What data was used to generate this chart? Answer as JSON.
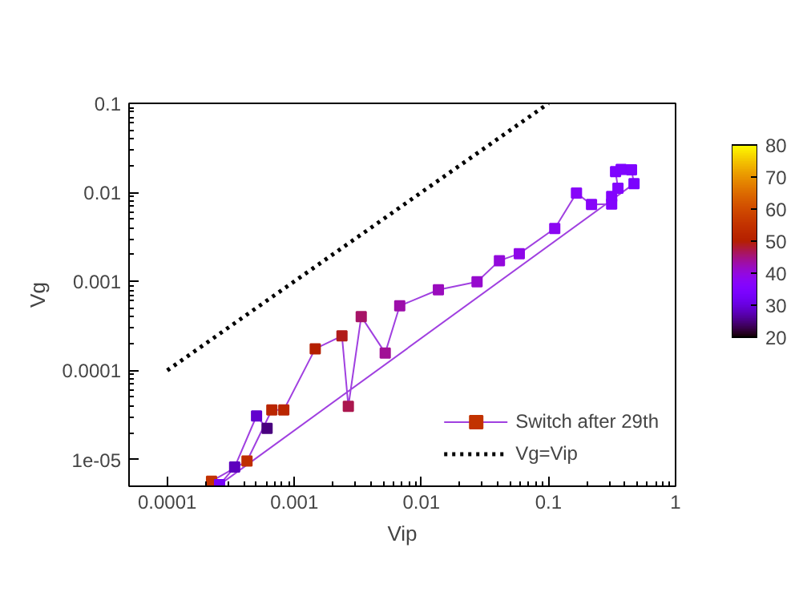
{
  "chart_data": {
    "type": "line",
    "xlabel": "Vip",
    "ylabel": "Vg",
    "log": "xy",
    "xlim": [
      5e-05,
      1
    ],
    "ylim": [
      5e-06,
      0.1
    ],
    "xticks": [
      {
        "value": 0.0001,
        "label": "0.0001"
      },
      {
        "value": 0.001,
        "label": "0.001"
      },
      0.01,
      0.1,
      1
    ],
    "yticks": [
      {
        "value": 1e-05,
        "label": "1e-05"
      },
      {
        "value": 0.0001,
        "label": "0.0001"
      },
      0.001,
      0.01,
      0.1
    ],
    "clim": [
      20,
      80
    ],
    "cticks": [
      20,
      30,
      40,
      50,
      60,
      70,
      80
    ],
    "legend": "bottom right",
    "grid": false,
    "series": [
      {
        "name": "Switch after 29th",
        "type": "line",
        "color": "#a040e0",
        "marker": "square",
        "x": [
          0.000223,
          0.000424,
          0.000665,
          0.000826,
          0.00146,
          0.00237,
          0.00266,
          0.00336,
          0.00519,
          0.00675,
          0.0136,
          0.0274,
          0.0411,
          0.0589,
          0.112,
          0.166,
          0.218,
          0.314,
          0.314,
          0.352,
          0.337,
          0.373,
          0.45,
          0.471,
          0.000258,
          0.000339,
          0.000504,
          0.00061
        ],
        "values": [
          5.7e-06,
          9.6e-06,
          3.6e-05,
          3.6e-05,
          0.000175,
          0.000244,
          3.95e-05,
          0.000403,
          0.000157,
          0.000531,
          0.000805,
          0.00099,
          0.00171,
          0.00205,
          0.00393,
          0.0098,
          0.0073,
          0.0074,
          0.009,
          0.0111,
          0.0171,
          0.0181,
          0.0179,
          0.0125,
          5.2e-06,
          8.2e-06,
          3.08e-05,
          2.23e-05
        ],
        "colors": [
          "#c23200",
          "#bf2e00",
          "#ba2600",
          "#ba2600",
          "#b41f00",
          "#b11c1a",
          "#ab174e",
          "#a71467",
          "#a11095",
          "#9d0eaa",
          "#9a0cbd",
          "#960ace",
          "#9309dc",
          "#8f08e9",
          "#8b06f2",
          "#8705f9",
          "#8705f9",
          "#8304fd",
          "#8304fd",
          "#8304fd",
          "#7f03ff",
          "#7f03ff",
          "#7f03ff",
          "#7b03fd",
          "#7602f9",
          "#5d00bd",
          "#6200ce",
          "#49007f"
        ]
      },
      {
        "name": "Vg=Vip",
        "type": "line",
        "line_style": "dotted",
        "marker": "none",
        "color": "#000000",
        "x": [
          0.0001,
          0.1
        ],
        "values": [
          0.0001,
          0.1
        ]
      }
    ]
  }
}
